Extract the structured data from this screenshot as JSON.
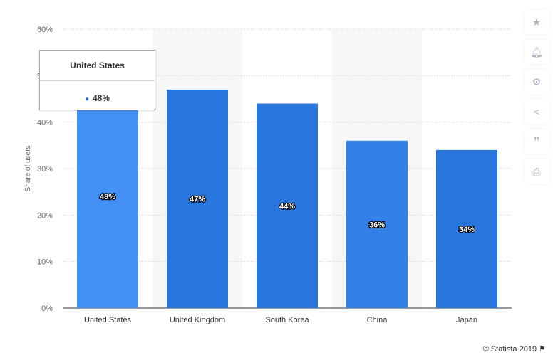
{
  "chart_data": {
    "type": "bar",
    "categories": [
      "United States",
      "United Kingdom",
      "South Korea",
      "China",
      "Japan"
    ],
    "values": [
      48,
      47,
      44,
      36,
      34
    ],
    "data_labels": [
      "48%",
      "47%",
      "44%",
      "36%",
      "34%"
    ],
    "ylabel": "Share of users",
    "xlabel": "",
    "ylim": [
      0,
      60
    ],
    "yticks": [
      "0%",
      "10%",
      "20%",
      "30%",
      "40%",
      "50%",
      "60%"
    ],
    "grid": true,
    "colors": [
      "#4390f5",
      "#2876dd",
      "#2876dd",
      "#3381e6",
      "#2876dd"
    ]
  },
  "tooltip": {
    "title": "United States",
    "value": "48%"
  },
  "sidebar": {
    "icons": [
      "star-icon",
      "bell-icon",
      "gear-icon",
      "share-icon",
      "quote-icon",
      "print-icon"
    ]
  },
  "credit": "© Statista 2019"
}
